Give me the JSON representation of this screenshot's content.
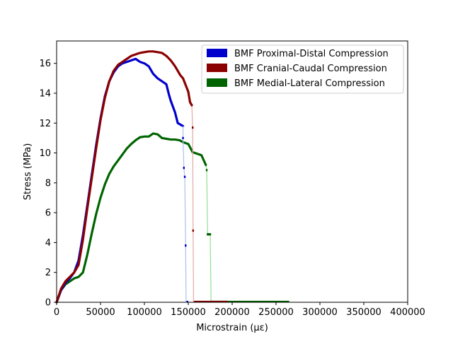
{
  "chart_data": {
    "type": "scatter",
    "xlabel": "Microstrain (με)",
    "ylabel": "Stress (MPa)",
    "xlim": [
      0,
      400000
    ],
    "ylim": [
      0,
      17.5
    ],
    "xticks": [
      0,
      50000,
      100000,
      150000,
      200000,
      250000,
      300000,
      350000,
      400000
    ],
    "yticks": [
      0,
      2,
      4,
      6,
      8,
      10,
      12,
      14,
      16
    ],
    "legend_position": "top-right",
    "grid": false,
    "series": [
      {
        "name": "BMF Proximal-Distal Compression",
        "color": "#0000cd",
        "fail_color": "#a9c2ee",
        "x": [
          0,
          5000,
          10000,
          15000,
          20000,
          25000,
          30000,
          35000,
          40000,
          45000,
          50000,
          55000,
          60000,
          65000,
          70000,
          75000,
          80000,
          85000,
          90000,
          95000,
          100000,
          105000,
          110000,
          115000,
          120000,
          125000,
          128000,
          130000,
          135000,
          138000,
          141000,
          144000
        ],
        "y": [
          0,
          0.8,
          1.3,
          1.6,
          2.0,
          2.8,
          4.5,
          6.5,
          8.5,
          10.5,
          12.3,
          13.8,
          14.8,
          15.4,
          15.8,
          16.0,
          16.1,
          16.2,
          16.3,
          16.1,
          16.0,
          15.8,
          15.3,
          15.0,
          14.8,
          14.6,
          13.9,
          13.5,
          12.7,
          12.0,
          11.9,
          11.8
        ],
        "fail_x": [
          144000,
          145000,
          146000,
          147000,
          147500,
          148000
        ],
        "fail_y": [
          11.0,
          9.0,
          8.4,
          3.8,
          0,
          0
        ],
        "tail_end_x": 150000
      },
      {
        "name": "BMF Cranial-Caudal Compression",
        "color": "#8b0000",
        "fail_color": "#e3a8a8",
        "x": [
          0,
          5000,
          10000,
          15000,
          20000,
          25000,
          30000,
          35000,
          40000,
          45000,
          50000,
          55000,
          60000,
          65000,
          70000,
          75000,
          80000,
          85000,
          90000,
          95000,
          100000,
          105000,
          110000,
          115000,
          120000,
          125000,
          130000,
          135000,
          138000,
          141000,
          144000,
          148000,
          150000,
          152000,
          154000
        ],
        "y": [
          0,
          0.9,
          1.4,
          1.7,
          2.0,
          2.5,
          4.2,
          6.3,
          8.3,
          10.3,
          12.2,
          13.7,
          14.8,
          15.5,
          15.9,
          16.1,
          16.3,
          16.5,
          16.6,
          16.7,
          16.75,
          16.8,
          16.8,
          16.75,
          16.7,
          16.5,
          16.2,
          15.8,
          15.5,
          15.2,
          15.0,
          14.4,
          14.1,
          13.4,
          13.2
        ],
        "fail_x": [
          154000,
          155000,
          155500,
          156000,
          156500
        ],
        "fail_y": [
          13.2,
          11.7,
          4.8,
          0,
          0
        ],
        "tail_end_x": 195000
      },
      {
        "name": "BMF Medial-Lateral Compression",
        "color": "#006400",
        "fail_color": "#90e090",
        "x": [
          0,
          5000,
          10000,
          15000,
          20000,
          25000,
          30000,
          35000,
          40000,
          45000,
          50000,
          55000,
          60000,
          65000,
          70000,
          75000,
          80000,
          85000,
          90000,
          95000,
          100000,
          105000,
          110000,
          115000,
          120000,
          125000,
          130000,
          135000,
          140000,
          145000,
          150000,
          155000,
          160000,
          165000,
          170000
        ],
        "y": [
          0,
          0.8,
          1.2,
          1.4,
          1.6,
          1.7,
          2.0,
          3.2,
          4.6,
          5.9,
          7.0,
          7.9,
          8.6,
          9.1,
          9.5,
          9.9,
          10.3,
          10.6,
          10.85,
          11.05,
          11.1,
          11.1,
          11.3,
          11.25,
          11.0,
          10.95,
          10.9,
          10.9,
          10.85,
          10.7,
          10.6,
          10.05,
          9.95,
          9.85,
          9.2
        ],
        "fail_x": [
          170000,
          171000,
          172000,
          173000,
          174000,
          175000,
          176000
        ],
        "fail_y": [
          9.2,
          8.85,
          4.55,
          4.55,
          4.55,
          4.55,
          0
        ],
        "tail_end_x": 265000
      }
    ]
  }
}
